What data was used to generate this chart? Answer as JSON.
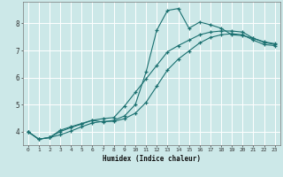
{
  "xlabel": "Humidex (Indice chaleur)",
  "bg_color": "#cce8e8",
  "line_color": "#1a7070",
  "grid_color": "#ffffff",
  "xlim": [
    -0.5,
    23.5
  ],
  "ylim": [
    3.5,
    8.8
  ],
  "yticks": [
    4,
    5,
    6,
    7,
    8
  ],
  "xticks": [
    0,
    1,
    2,
    3,
    4,
    5,
    6,
    7,
    8,
    9,
    10,
    11,
    12,
    13,
    14,
    15,
    16,
    17,
    18,
    19,
    20,
    21,
    22,
    23
  ],
  "curve1_x": [
    0,
    1,
    2,
    3,
    4,
    5,
    6,
    7,
    8,
    9,
    10,
    11,
    12,
    13,
    14,
    15,
    16,
    17,
    18,
    19,
    20,
    21,
    22,
    23
  ],
  "curve1_y": [
    4.0,
    3.72,
    3.78,
    4.0,
    4.15,
    4.28,
    4.42,
    4.35,
    4.42,
    4.58,
    5.0,
    6.2,
    7.75,
    8.48,
    8.55,
    7.82,
    8.05,
    7.95,
    7.82,
    7.58,
    7.55,
    7.45,
    7.32,
    7.25
  ],
  "curve2_x": [
    0,
    1,
    2,
    3,
    4,
    5,
    6,
    7,
    8,
    9,
    10,
    11,
    12,
    13,
    14,
    15,
    16,
    17,
    18,
    19,
    20,
    21,
    22,
    23
  ],
  "curve2_y": [
    4.0,
    3.72,
    3.78,
    4.05,
    4.18,
    4.3,
    4.42,
    4.48,
    4.52,
    4.95,
    5.45,
    5.95,
    6.45,
    6.95,
    7.18,
    7.38,
    7.58,
    7.68,
    7.72,
    7.72,
    7.68,
    7.45,
    7.3,
    7.22
  ],
  "curve3_x": [
    0,
    1,
    2,
    3,
    4,
    5,
    6,
    7,
    8,
    9,
    10,
    11,
    12,
    13,
    14,
    15,
    16,
    17,
    18,
    19,
    20,
    21,
    22,
    23
  ],
  "curve3_y": [
    4.0,
    3.72,
    3.78,
    3.88,
    4.02,
    4.18,
    4.32,
    4.38,
    4.38,
    4.48,
    4.68,
    5.08,
    5.68,
    6.28,
    6.68,
    6.98,
    7.28,
    7.48,
    7.58,
    7.62,
    7.58,
    7.38,
    7.22,
    7.18
  ]
}
